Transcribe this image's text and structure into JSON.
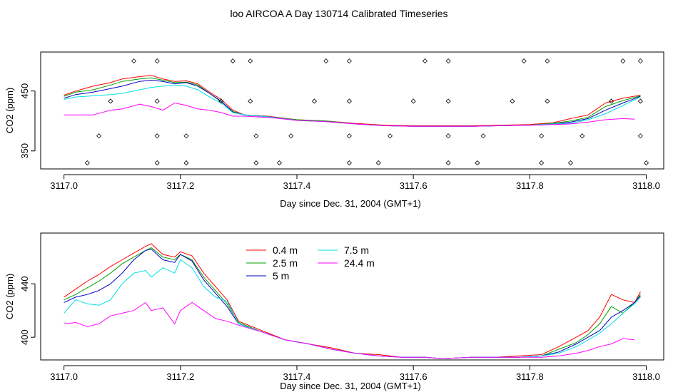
{
  "title": "loo AIRCOA A  Day 130714  Calibrated Timeseries",
  "chart_data": [
    {
      "type": "scatter",
      "xlabel": "Day since Dec. 31, 2004 (GMT+1)",
      "ylabel": "CO2 (ppm)",
      "xlim": [
        3116.96,
        3118.03
      ],
      "ylim": [
        320,
        515
      ],
      "x_ticks": [
        "3117.0",
        "3117.2",
        "3117.4",
        "3117.6",
        "3117.8",
        "3118.0"
      ],
      "x_tick_values": [
        3117.0,
        3117.2,
        3117.4,
        3117.6,
        3117.8,
        3118.0
      ],
      "y_ticks": [
        "350",
        "450"
      ],
      "y_tick_values": [
        350,
        450
      ],
      "series": [
        {
          "color": "#ff0000",
          "x": [
            3117.0,
            3117.02,
            3117.05,
            3117.08,
            3117.1,
            3117.13,
            3117.15,
            3117.17,
            3117.19,
            3117.21,
            3117.23,
            3117.25,
            3117.27,
            3117.29,
            3117.31,
            3117.35,
            3117.4,
            3117.45,
            3117.5,
            3117.55,
            3117.6,
            3117.65,
            3117.7,
            3117.75,
            3117.8,
            3117.84,
            3117.87,
            3117.9,
            3117.93,
            3117.96,
            3117.99
          ],
          "values": [
            443,
            450,
            458,
            464,
            470,
            474,
            476,
            470,
            466,
            467,
            462,
            448,
            436,
            418,
            410,
            408,
            402,
            400,
            396,
            393,
            392,
            392,
            392,
            393,
            394,
            397,
            404,
            410,
            430,
            438,
            443
          ]
        },
        {
          "color": "#00a000",
          "x": [
            3117.0,
            3117.02,
            3117.05,
            3117.08,
            3117.1,
            3117.13,
            3117.15,
            3117.17,
            3117.19,
            3117.21,
            3117.23,
            3117.25,
            3117.27,
            3117.29,
            3117.31,
            3117.35,
            3117.4,
            3117.45,
            3117.5,
            3117.55,
            3117.6,
            3117.65,
            3117.7,
            3117.75,
            3117.8,
            3117.84,
            3117.87,
            3117.9,
            3117.93,
            3117.96,
            3117.99
          ],
          "values": [
            441,
            448,
            452,
            460,
            466,
            470,
            472,
            468,
            464,
            465,
            460,
            446,
            432,
            416,
            410,
            407,
            402,
            400,
            395,
            392,
            391,
            391,
            391,
            392,
            393,
            396,
            400,
            406,
            424,
            434,
            442
          ]
        },
        {
          "color": "#0000c0",
          "x": [
            3117.0,
            3117.02,
            3117.05,
            3117.08,
            3117.1,
            3117.13,
            3117.15,
            3117.17,
            3117.19,
            3117.21,
            3117.23,
            3117.25,
            3117.27,
            3117.29,
            3117.31,
            3117.35,
            3117.4,
            3117.45,
            3117.5,
            3117.55,
            3117.6,
            3117.65,
            3117.7,
            3117.75,
            3117.8,
            3117.84,
            3117.87,
            3117.9,
            3117.93,
            3117.96,
            3117.99
          ],
          "values": [
            438,
            444,
            448,
            454,
            458,
            466,
            468,
            466,
            462,
            464,
            458,
            446,
            433,
            415,
            410,
            407,
            401,
            399,
            395,
            392,
            391,
            391,
            391,
            392,
            393,
            395,
            398,
            404,
            418,
            430,
            441
          ]
        },
        {
          "color": "#00e0e0",
          "x": [
            3117.0,
            3117.02,
            3117.05,
            3117.08,
            3117.1,
            3117.13,
            3117.15,
            3117.17,
            3117.19,
            3117.21,
            3117.23,
            3117.25,
            3117.27,
            3117.29,
            3117.31,
            3117.35,
            3117.4,
            3117.45,
            3117.5,
            3117.55,
            3117.6,
            3117.65,
            3117.7,
            3117.75,
            3117.8,
            3117.84,
            3117.87,
            3117.9,
            3117.93,
            3117.96,
            3117.99
          ],
          "values": [
            436,
            440,
            442,
            444,
            446,
            452,
            456,
            458,
            460,
            458,
            452,
            440,
            430,
            414,
            410,
            407,
            401,
            399,
            395,
            392,
            391,
            391,
            391,
            392,
            393,
            395,
            396,
            402,
            412,
            426,
            440
          ]
        },
        {
          "color": "#ff00ff",
          "x": [
            3117.0,
            3117.02,
            3117.05,
            3117.08,
            3117.1,
            3117.13,
            3117.15,
            3117.17,
            3117.19,
            3117.21,
            3117.23,
            3117.25,
            3117.27,
            3117.29,
            3117.31,
            3117.35,
            3117.4,
            3117.45,
            3117.5,
            3117.55,
            3117.6,
            3117.65,
            3117.7,
            3117.75,
            3117.8,
            3117.84,
            3117.87,
            3117.9,
            3117.93,
            3117.96,
            3117.98
          ],
          "values": [
            410,
            410,
            410,
            418,
            420,
            428,
            424,
            418,
            430,
            426,
            420,
            418,
            414,
            408,
            408,
            406,
            401,
            399,
            395,
            392,
            391,
            391,
            391,
            392,
            393,
            394,
            395,
            398,
            402,
            404,
            403
          ]
        }
      ],
      "points": {
        "x": [
          3117.12,
          3117.16,
          3117.29,
          3117.32,
          3117.45,
          3117.49,
          3117.62,
          3117.66,
          3117.79,
          3117.83,
          3117.96,
          3117.99,
          3117.06,
          3117.16,
          3117.21,
          3117.33,
          3117.39,
          3117.49,
          3117.56,
          3117.66,
          3117.72,
          3117.82,
          3117.89,
          3117.99,
          3117.08,
          3117.16,
          3117.27,
          3117.32,
          3117.43,
          3117.49,
          3117.6,
          3117.66,
          3117.77,
          3117.83,
          3117.94,
          3117.99,
          3117.04,
          3117.16,
          3117.21,
          3117.33,
          3117.37,
          3117.49,
          3117.54,
          3117.66,
          3117.71,
          3117.82,
          3117.87,
          3118.0
        ],
        "y": [
          500,
          500,
          500,
          500,
          500,
          500,
          500,
          500,
          500,
          500,
          500,
          500,
          375,
          375,
          375,
          375,
          375,
          375,
          375,
          375,
          375,
          375,
          375,
          375,
          433,
          433,
          433,
          433,
          433,
          433,
          433,
          433,
          433,
          433,
          433,
          433,
          330,
          330,
          330,
          330,
          330,
          330,
          330,
          330,
          330,
          330,
          330,
          330
        ]
      }
    },
    {
      "type": "line",
      "xlabel": "Day since Dec. 31, 2004 (GMT+1)",
      "ylabel": "CO2 (ppm)",
      "xlim": [
        3116.96,
        3118.03
      ],
      "ylim": [
        383,
        478
      ],
      "x_ticks": [
        "3117.0",
        "3117.2",
        "3117.4",
        "3117.6",
        "3117.8",
        "3118.0"
      ],
      "x_tick_values": [
        3117.0,
        3117.2,
        3117.4,
        3117.6,
        3117.8,
        3118.0
      ],
      "y_ticks": [
        "400",
        "440"
      ],
      "y_tick_values": [
        400,
        440
      ],
      "legend_position": "top-center",
      "series": [
        {
          "name": "0.4 m",
          "color": "#ff0000",
          "x": [
            3117.0,
            3117.02,
            3117.04,
            3117.06,
            3117.08,
            3117.1,
            3117.12,
            3117.14,
            3117.15,
            3117.17,
            3117.19,
            3117.2,
            3117.22,
            3117.24,
            3117.26,
            3117.28,
            3117.3,
            3117.34,
            3117.38,
            3117.42,
            3117.46,
            3117.5,
            3117.54,
            3117.58,
            3117.62,
            3117.65,
            3117.7,
            3117.74,
            3117.78,
            3117.82,
            3117.85,
            3117.88,
            3117.9,
            3117.92,
            3117.94,
            3117.96,
            3117.98,
            3117.99
          ],
          "values": [
            430,
            436,
            442,
            447,
            453,
            458,
            463,
            468,
            470,
            462,
            460,
            464,
            461,
            448,
            438,
            428,
            412,
            405,
            398,
            395,
            392,
            388,
            387,
            385,
            385,
            384,
            385,
            385,
            386,
            387,
            393,
            400,
            405,
            415,
            432,
            428,
            426,
            434
          ]
        },
        {
          "name": "2.5 m",
          "color": "#00a000",
          "x": [
            3117.0,
            3117.02,
            3117.04,
            3117.06,
            3117.08,
            3117.1,
            3117.12,
            3117.14,
            3117.15,
            3117.17,
            3117.19,
            3117.2,
            3117.22,
            3117.24,
            3117.26,
            3117.28,
            3117.3,
            3117.34,
            3117.38,
            3117.42,
            3117.46,
            3117.5,
            3117.54,
            3117.58,
            3117.62,
            3117.65,
            3117.7,
            3117.74,
            3117.78,
            3117.82,
            3117.85,
            3117.88,
            3117.9,
            3117.92,
            3117.94,
            3117.96,
            3117.98,
            3117.99
          ],
          "values": [
            428,
            432,
            437,
            442,
            448,
            455,
            460,
            465,
            467,
            460,
            458,
            462,
            458,
            445,
            435,
            425,
            411,
            404,
            398,
            395,
            391,
            388,
            386,
            385,
            385,
            384,
            385,
            385,
            385,
            386,
            391,
            396,
            402,
            410,
            423,
            418,
            426,
            432
          ]
        },
        {
          "name": "5 m",
          "color": "#0000c0",
          "x": [
            3117.0,
            3117.02,
            3117.04,
            3117.06,
            3117.08,
            3117.1,
            3117.12,
            3117.14,
            3117.15,
            3117.17,
            3117.19,
            3117.2,
            3117.22,
            3117.24,
            3117.26,
            3117.28,
            3117.3,
            3117.34,
            3117.38,
            3117.42,
            3117.46,
            3117.5,
            3117.54,
            3117.58,
            3117.62,
            3117.65,
            3117.7,
            3117.74,
            3117.78,
            3117.82,
            3117.85,
            3117.88,
            3117.9,
            3117.92,
            3117.94,
            3117.96,
            3117.98,
            3117.99
          ],
          "values": [
            426,
            430,
            432,
            435,
            440,
            448,
            458,
            465,
            466,
            458,
            456,
            462,
            457,
            443,
            433,
            423,
            410,
            404,
            398,
            395,
            391,
            388,
            386,
            385,
            385,
            384,
            385,
            385,
            385,
            386,
            389,
            395,
            400,
            405,
            415,
            420,
            426,
            431
          ]
        },
        {
          "name": "7.5 m",
          "color": "#00e0e0",
          "x": [
            3117.0,
            3117.02,
            3117.04,
            3117.06,
            3117.08,
            3117.1,
            3117.12,
            3117.14,
            3117.15,
            3117.17,
            3117.19,
            3117.2,
            3117.22,
            3117.24,
            3117.26,
            3117.28,
            3117.3,
            3117.34,
            3117.38,
            3117.42,
            3117.46,
            3117.5,
            3117.54,
            3117.58,
            3117.62,
            3117.65,
            3117.7,
            3117.74,
            3117.78,
            3117.82,
            3117.85,
            3117.88,
            3117.9,
            3117.92,
            3117.94,
            3117.96,
            3117.98,
            3117.99
          ],
          "values": [
            418,
            428,
            425,
            424,
            428,
            440,
            448,
            450,
            445,
            452,
            448,
            458,
            452,
            438,
            430,
            427,
            410,
            404,
            398,
            395,
            391,
            388,
            386,
            385,
            385,
            384,
            385,
            385,
            385,
            386,
            388,
            393,
            398,
            403,
            410,
            418,
            425,
            430
          ]
        },
        {
          "name": "24.4 m",
          "color": "#ff00ff",
          "x": [
            3117.0,
            3117.02,
            3117.04,
            3117.06,
            3117.08,
            3117.1,
            3117.12,
            3117.14,
            3117.15,
            3117.17,
            3117.19,
            3117.2,
            3117.22,
            3117.24,
            3117.26,
            3117.28,
            3117.3,
            3117.34,
            3117.38,
            3117.42,
            3117.46,
            3117.5,
            3117.54,
            3117.58,
            3117.62,
            3117.65,
            3117.7,
            3117.74,
            3117.78,
            3117.82,
            3117.85,
            3117.88,
            3117.9,
            3117.92,
            3117.94,
            3117.96,
            3117.98
          ],
          "values": [
            410,
            411,
            408,
            410,
            416,
            418,
            420,
            426,
            420,
            422,
            410,
            420,
            426,
            420,
            414,
            412,
            409,
            404,
            398,
            395,
            391,
            388,
            386,
            385,
            385,
            384,
            385,
            385,
            385,
            385,
            386,
            388,
            390,
            393,
            395,
            399,
            398
          ]
        }
      ]
    }
  ]
}
